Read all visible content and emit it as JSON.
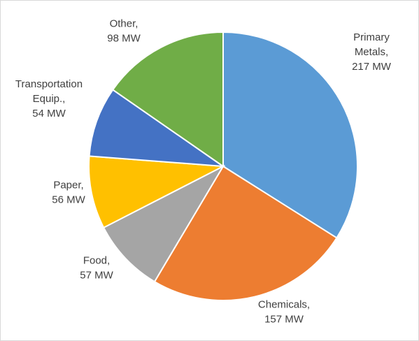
{
  "chart_data": {
    "type": "pie",
    "title": "",
    "unit": "MW",
    "start_angle_deg": 0,
    "direction": "clockwise",
    "slices": [
      {
        "category": "Primary Metals",
        "value": 217,
        "display_value": "217 MW",
        "label_lines": [
          "Primary",
          "Metals,",
          "217 MW"
        ],
        "color": "#5B9BD5"
      },
      {
        "category": "Chemicals",
        "value": 157,
        "display_value": "157 MW",
        "label_lines": [
          "Chemicals,",
          "157 MW"
        ],
        "color": "#ED7D31"
      },
      {
        "category": "Food",
        "value": 57,
        "display_value": "57 MW",
        "label_lines": [
          "Food,",
          "57 MW"
        ],
        "color": "#A5A5A5"
      },
      {
        "category": "Paper",
        "value": 56,
        "display_value": "56 MW",
        "label_lines": [
          "Paper,",
          "56 MW"
        ],
        "color": "#FFC000"
      },
      {
        "category": "Transportation Equip.",
        "value": 54,
        "display_value": "54 MW",
        "label_lines": [
          "Transportation",
          "Equip.,",
          "54 MW"
        ],
        "color": "#4472C4"
      },
      {
        "category": "Other",
        "value": 98,
        "display_value": "98 MW",
        "label_lines": [
          "Other,",
          "98 MW"
        ],
        "color": "#70AD47"
      }
    ],
    "legend": "none",
    "data_labels": "outside"
  }
}
